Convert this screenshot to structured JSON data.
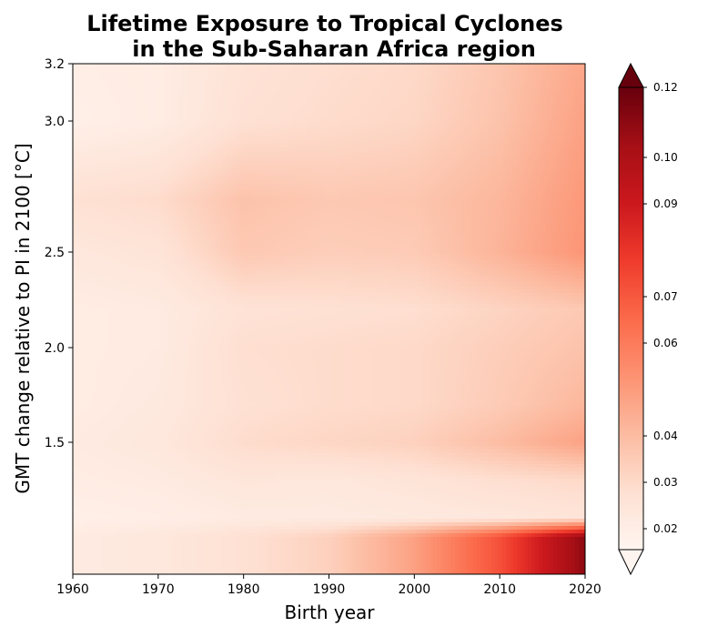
{
  "chart_data": {
    "type": "heatmap",
    "title_lines": [
      "Lifetime Exposure to Tropical Cyclones",
      "in the Sub-Saharan Africa region"
    ],
    "xlabel": "Birth year",
    "ylabel": "GMT change relative to PI in 2100 [°C]",
    "x_ticks": [
      1960,
      1970,
      1980,
      1990,
      2000,
      2010,
      2020
    ],
    "y_ticks": [
      "1.5",
      "2.0",
      "2.5",
      "3.0",
      "3.2"
    ],
    "colorbar_ticks": [
      "0.02",
      "0.03",
      "0.04",
      "0.06",
      "0.07",
      "0.09",
      "0.10",
      "0.12"
    ],
    "colormap": [
      "#fff5f0",
      "#fee0d2",
      "#fcbba1",
      "#fc9272",
      "#fb6a4a",
      "#ef3b2c",
      "#cb181d",
      "#a50f15",
      "#67000d"
    ],
    "colorbar_extend": "both",
    "birth_years": [
      1960,
      1970,
      1980,
      1990,
      2000,
      2010,
      2020
    ],
    "rows": [
      {
        "gmt": 3.2,
        "values": [
          0.02,
          0.021,
          0.027,
          0.029,
          0.031,
          0.038,
          0.048
        ]
      },
      {
        "gmt": 3.0,
        "values": [
          0.019,
          0.021,
          0.028,
          0.03,
          0.032,
          0.039,
          0.05
        ]
      },
      {
        "gmt": 2.7,
        "values": [
          0.028,
          0.03,
          0.039,
          0.037,
          0.038,
          0.043,
          0.053
        ]
      },
      {
        "gmt": 2.5,
        "values": [
          0.024,
          0.026,
          0.037,
          0.035,
          0.036,
          0.044,
          0.054
        ]
      },
      {
        "gmt": 2.2,
        "values": [
          0.021,
          0.022,
          0.027,
          0.028,
          0.029,
          0.033,
          0.037
        ]
      },
      {
        "gmt": 2.0,
        "values": [
          0.021,
          0.022,
          0.029,
          0.03,
          0.031,
          0.035,
          0.039
        ]
      },
      {
        "gmt": 1.7,
        "values": [
          0.021,
          0.023,
          0.028,
          0.03,
          0.031,
          0.036,
          0.043
        ]
      },
      {
        "gmt": 1.5,
        "values": [
          0.022,
          0.024,
          0.03,
          0.032,
          0.034,
          0.041,
          0.05
        ]
      },
      {
        "gmt": 1.3,
        "values": [
          0.021,
          0.022,
          0.025,
          0.024,
          0.026,
          0.029,
          0.031
        ]
      },
      {
        "gmt": 1.1,
        "values": [
          0.019,
          0.02,
          0.022,
          0.022,
          0.023,
          0.024,
          0.026
        ]
      },
      {
        "gmt": 1.0,
        "values": [
          0.022,
          0.024,
          0.028,
          0.034,
          0.05,
          0.075,
          0.112
        ]
      }
    ]
  }
}
